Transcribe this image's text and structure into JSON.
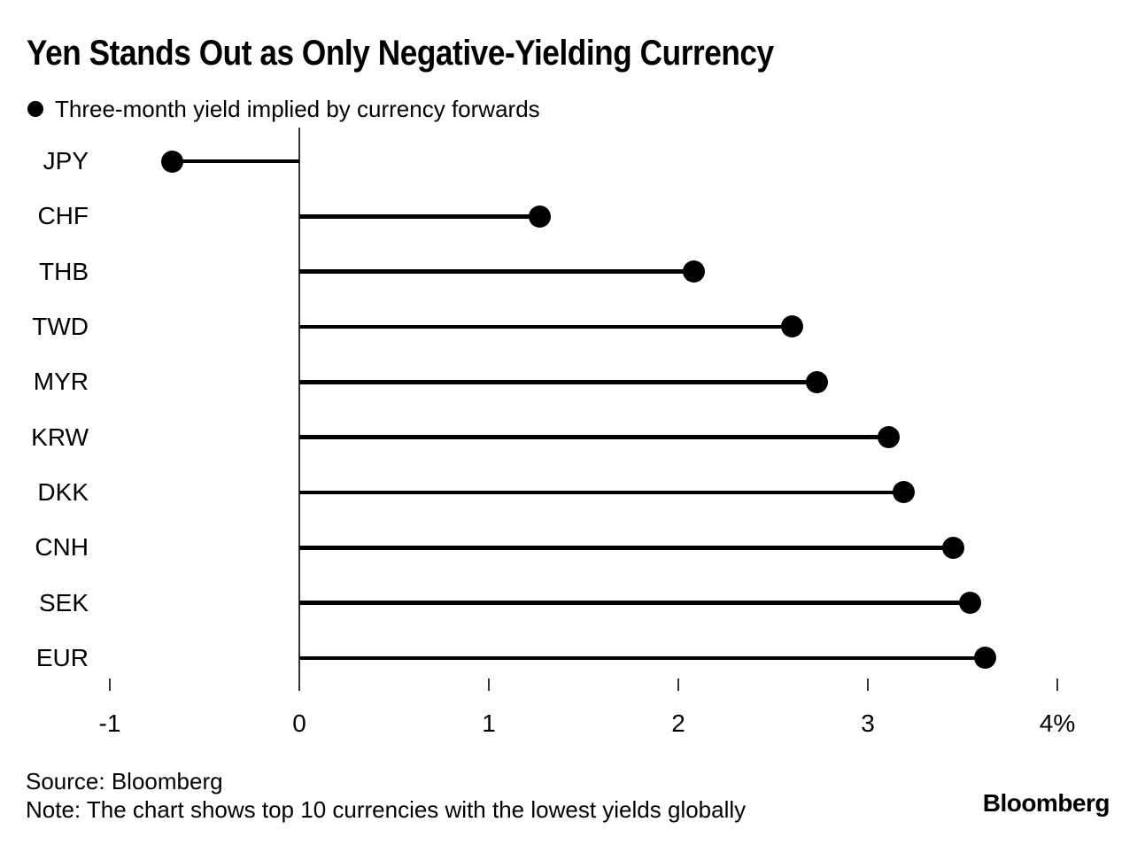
{
  "title": "Yen Stands Out as Only Negative-Yielding Currency",
  "legend": {
    "marker": "filled-circle",
    "label": "Three-month yield implied by currency forwards"
  },
  "chart_data": {
    "type": "bar",
    "variant": "horizontal-lollipop",
    "title": "Yen Stands Out as Only Negative-Yielding Currency",
    "categories": [
      "JPY",
      "CHF",
      "THB",
      "TWD",
      "MYR",
      "KRW",
      "DKK",
      "CNH",
      "SEK",
      "EUR"
    ],
    "values": [
      -0.67,
      1.27,
      2.08,
      2.6,
      2.73,
      3.11,
      3.19,
      3.45,
      3.54,
      3.62
    ],
    "unit": "%",
    "xlabel": "",
    "ylabel": "",
    "xlim": [
      -1,
      4
    ],
    "xticks": [
      -1,
      0,
      1,
      2,
      3,
      4
    ],
    "xtick_labels": [
      "-1",
      "0",
      "1",
      "2",
      "3",
      "4%"
    ],
    "grid": false,
    "legend_position": "top-left",
    "legend_entries": [
      "Three-month yield implied by currency forwards"
    ],
    "marker": "filled-circle"
  },
  "footer": {
    "source": "Source: Bloomberg",
    "note": "Note: The chart shows top 10 currencies with the lowest yields globally",
    "brand": "Bloomberg"
  },
  "colors": {
    "background": "#ffffff",
    "foreground": "#000000",
    "axis": "#333333"
  }
}
